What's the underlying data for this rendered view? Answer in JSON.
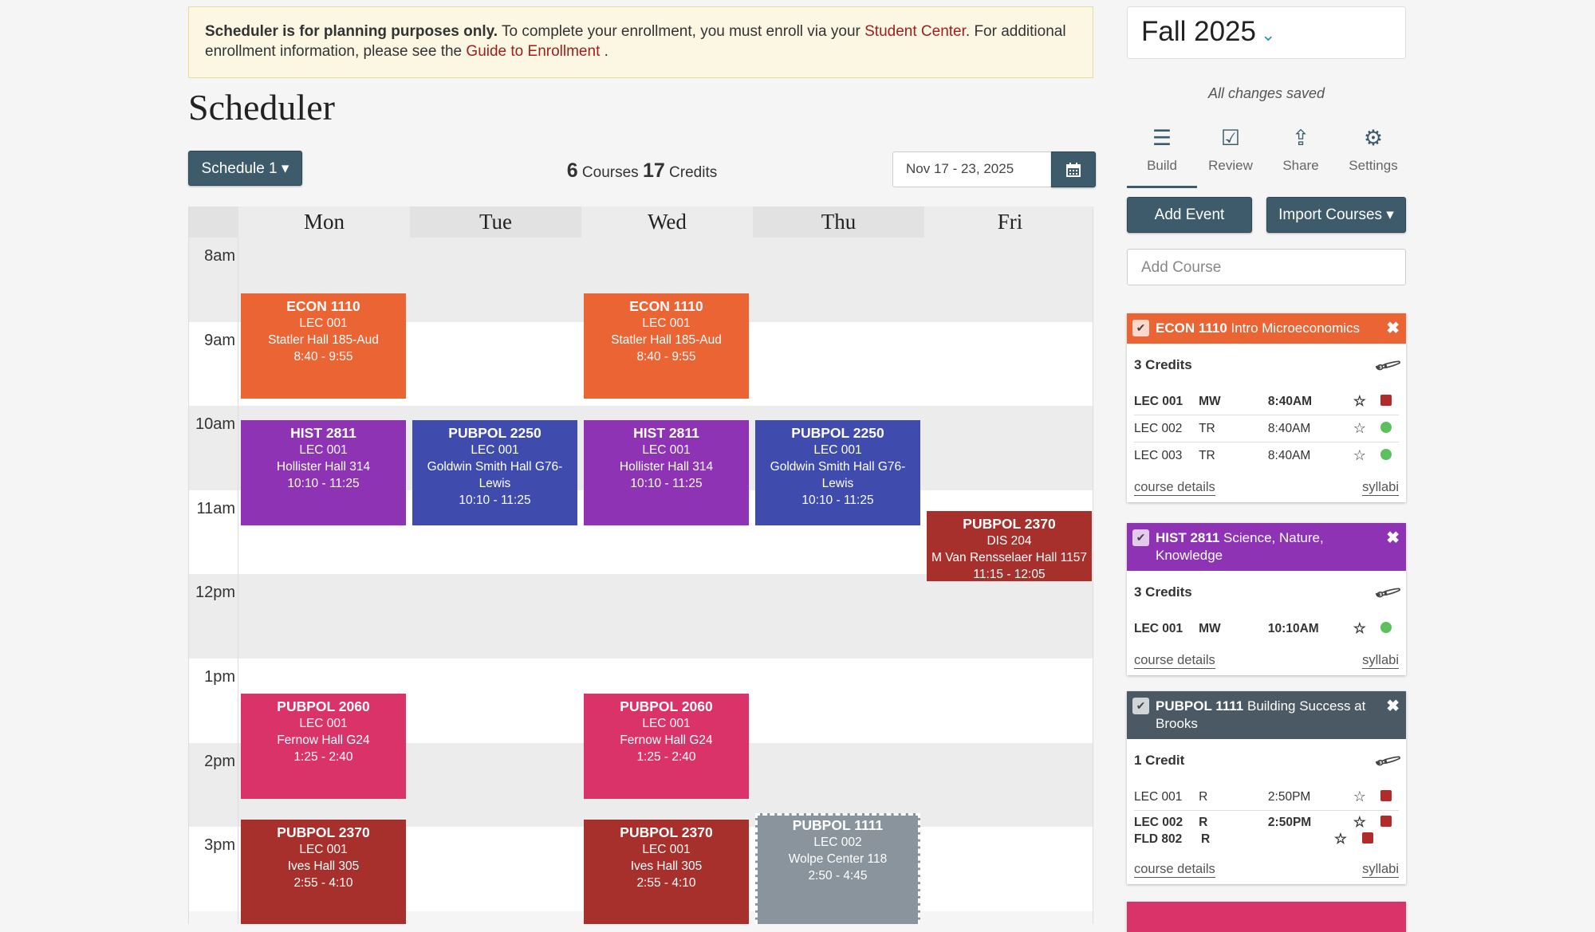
{
  "banner": {
    "bold": "Scheduler is for planning purposes only.",
    "text1": " To complete your enrollment, you must enroll via your ",
    "link1": "Student Center",
    "text2": ". For additional enrollment information, please see the ",
    "link2": "Guide to Enrollment",
    "text3": " ."
  },
  "page_title": "Scheduler",
  "toolbar": {
    "schedule_label": "Schedule 1 ▾",
    "courses_count": "6",
    "courses_label": " Courses ",
    "credits_count": "17",
    "credits_label": " Credits",
    "date_range": "Nov 17 - 23, 2025",
    "calendar_icon": "calendar-icon"
  },
  "calendar": {
    "days": [
      "Mon",
      "Tue",
      "Wed",
      "Thu",
      "Fri"
    ],
    "hours": [
      "8am",
      "9am",
      "10am",
      "11am",
      "12pm",
      "1pm",
      "2pm",
      "3pm"
    ],
    "events": [
      {
        "day": 0,
        "code": "ECON 1110",
        "section": "LEC 001",
        "location": "Statler Hall 185-Aud",
        "time": "8:40 - 9:55",
        "color": "#ea6434"
      },
      {
        "day": 2,
        "code": "ECON 1110",
        "section": "LEC 001",
        "location": "Statler Hall 185-Aud",
        "time": "8:40 - 9:55",
        "color": "#ea6434"
      },
      {
        "day": 0,
        "code": "HIST 2811",
        "section": "LEC 001",
        "location": "Hollister Hall 314",
        "time": "10:10 - 11:25",
        "color": "#8e33b3"
      },
      {
        "day": 2,
        "code": "HIST 2811",
        "section": "LEC 001",
        "location": "Hollister Hall 314",
        "time": "10:10 - 11:25",
        "color": "#8e33b3"
      },
      {
        "day": 1,
        "code": "PUBPOL 2250",
        "section": "LEC 001",
        "location": "Goldwin Smith Hall G76-Lewis",
        "time": "10:10 - 11:25",
        "color": "#3f4cad"
      },
      {
        "day": 3,
        "code": "PUBPOL 2250",
        "section": "LEC 001",
        "location": "Goldwin Smith Hall G76-Lewis",
        "time": "10:10 - 11:25",
        "color": "#3f4cad"
      },
      {
        "day": 4,
        "code": "PUBPOL 2370",
        "section": "DIS 204",
        "location": "M Van Rensselaer Hall 1157",
        "time": "11:15 - 12:05",
        "color": "#a8302c"
      },
      {
        "day": 0,
        "code": "PUBPOL 2060",
        "section": "LEC 001",
        "location": "Fernow Hall G24",
        "time": "1:25 - 2:40",
        "color": "#d9336a"
      },
      {
        "day": 2,
        "code": "PUBPOL 2060",
        "section": "LEC 001",
        "location": "Fernow Hall G24",
        "time": "1:25 - 2:40",
        "color": "#d9336a"
      },
      {
        "day": 0,
        "code": "PUBPOL 2370",
        "section": "LEC 001",
        "location": "Ives Hall 305",
        "time": "2:55 - 4:10",
        "color": "#a8302c"
      },
      {
        "day": 2,
        "code": "PUBPOL 2370",
        "section": "LEC 001",
        "location": "Ives Hall 305",
        "time": "2:55 - 4:10",
        "color": "#a8302c"
      },
      {
        "day": 3,
        "code": "PUBPOL 1111",
        "section": "LEC 002",
        "location": "Wolpe Center 118",
        "time": "2:50 - 4:45",
        "color": "#8a949c",
        "preview": true
      }
    ]
  },
  "sidebar": {
    "term": "Fall 2025",
    "status": "All changes saved",
    "tabs": [
      {
        "label": "Build",
        "icon": "list-icon",
        "glyph": "☰"
      },
      {
        "label": "Review",
        "icon": "check-square-icon",
        "glyph": "☑"
      },
      {
        "label": "Share",
        "icon": "share-icon",
        "glyph": "⇪"
      },
      {
        "label": "Settings",
        "icon": "gear-icon",
        "glyph": "⚙"
      }
    ],
    "add_event": "Add Event",
    "import_courses": "Import Courses ▾",
    "add_course_placeholder": "Add Course",
    "courses": [
      {
        "code": "ECON 1110",
        "title": " Intro Microeconomics",
        "color": "#ea6434",
        "credits": "3 Credits",
        "sections": [
          {
            "rows": [
              {
                "sec": "LEC 001",
                "days": "MW",
                "time": "8:40AM",
                "status": "closed"
              }
            ],
            "bold": true
          },
          {
            "rows": [
              {
                "sec": "LEC 002",
                "days": "TR",
                "time": "8:40AM",
                "status": "open"
              }
            ]
          },
          {
            "rows": [
              {
                "sec": "LEC 003",
                "days": "TR",
                "time": "8:40AM",
                "status": "open"
              }
            ]
          }
        ],
        "details": "course details",
        "syllabi": "syllabi"
      },
      {
        "code": "HIST 2811",
        "title": " Science, Nature, Knowledge",
        "color": "#8e33b3",
        "credits": "3 Credits",
        "sections": [
          {
            "rows": [
              {
                "sec": "LEC 001",
                "days": "MW",
                "time": "10:10AM",
                "status": "open"
              }
            ],
            "bold": true
          }
        ],
        "details": "course details",
        "syllabi": "syllabi"
      },
      {
        "code": "PUBPOL 1111",
        "title": " Building Success at Brooks",
        "color": "#4a5964",
        "credits": "1 Credit",
        "sections": [
          {
            "rows": [
              {
                "sec": "LEC 001",
                "days": "R",
                "time": "2:50PM",
                "status": "closed"
              }
            ]
          },
          {
            "rows": [
              {
                "sec": "LEC 002",
                "days": "R",
                "time": "2:50PM",
                "status": "closed"
              },
              {
                "sec": "FLD 802",
                "days": "R",
                "time": "",
                "status": "closed"
              }
            ],
            "bold": true
          }
        ],
        "details": "course details",
        "syllabi": "syllabi"
      },
      {
        "color": "#d9336a"
      }
    ]
  }
}
